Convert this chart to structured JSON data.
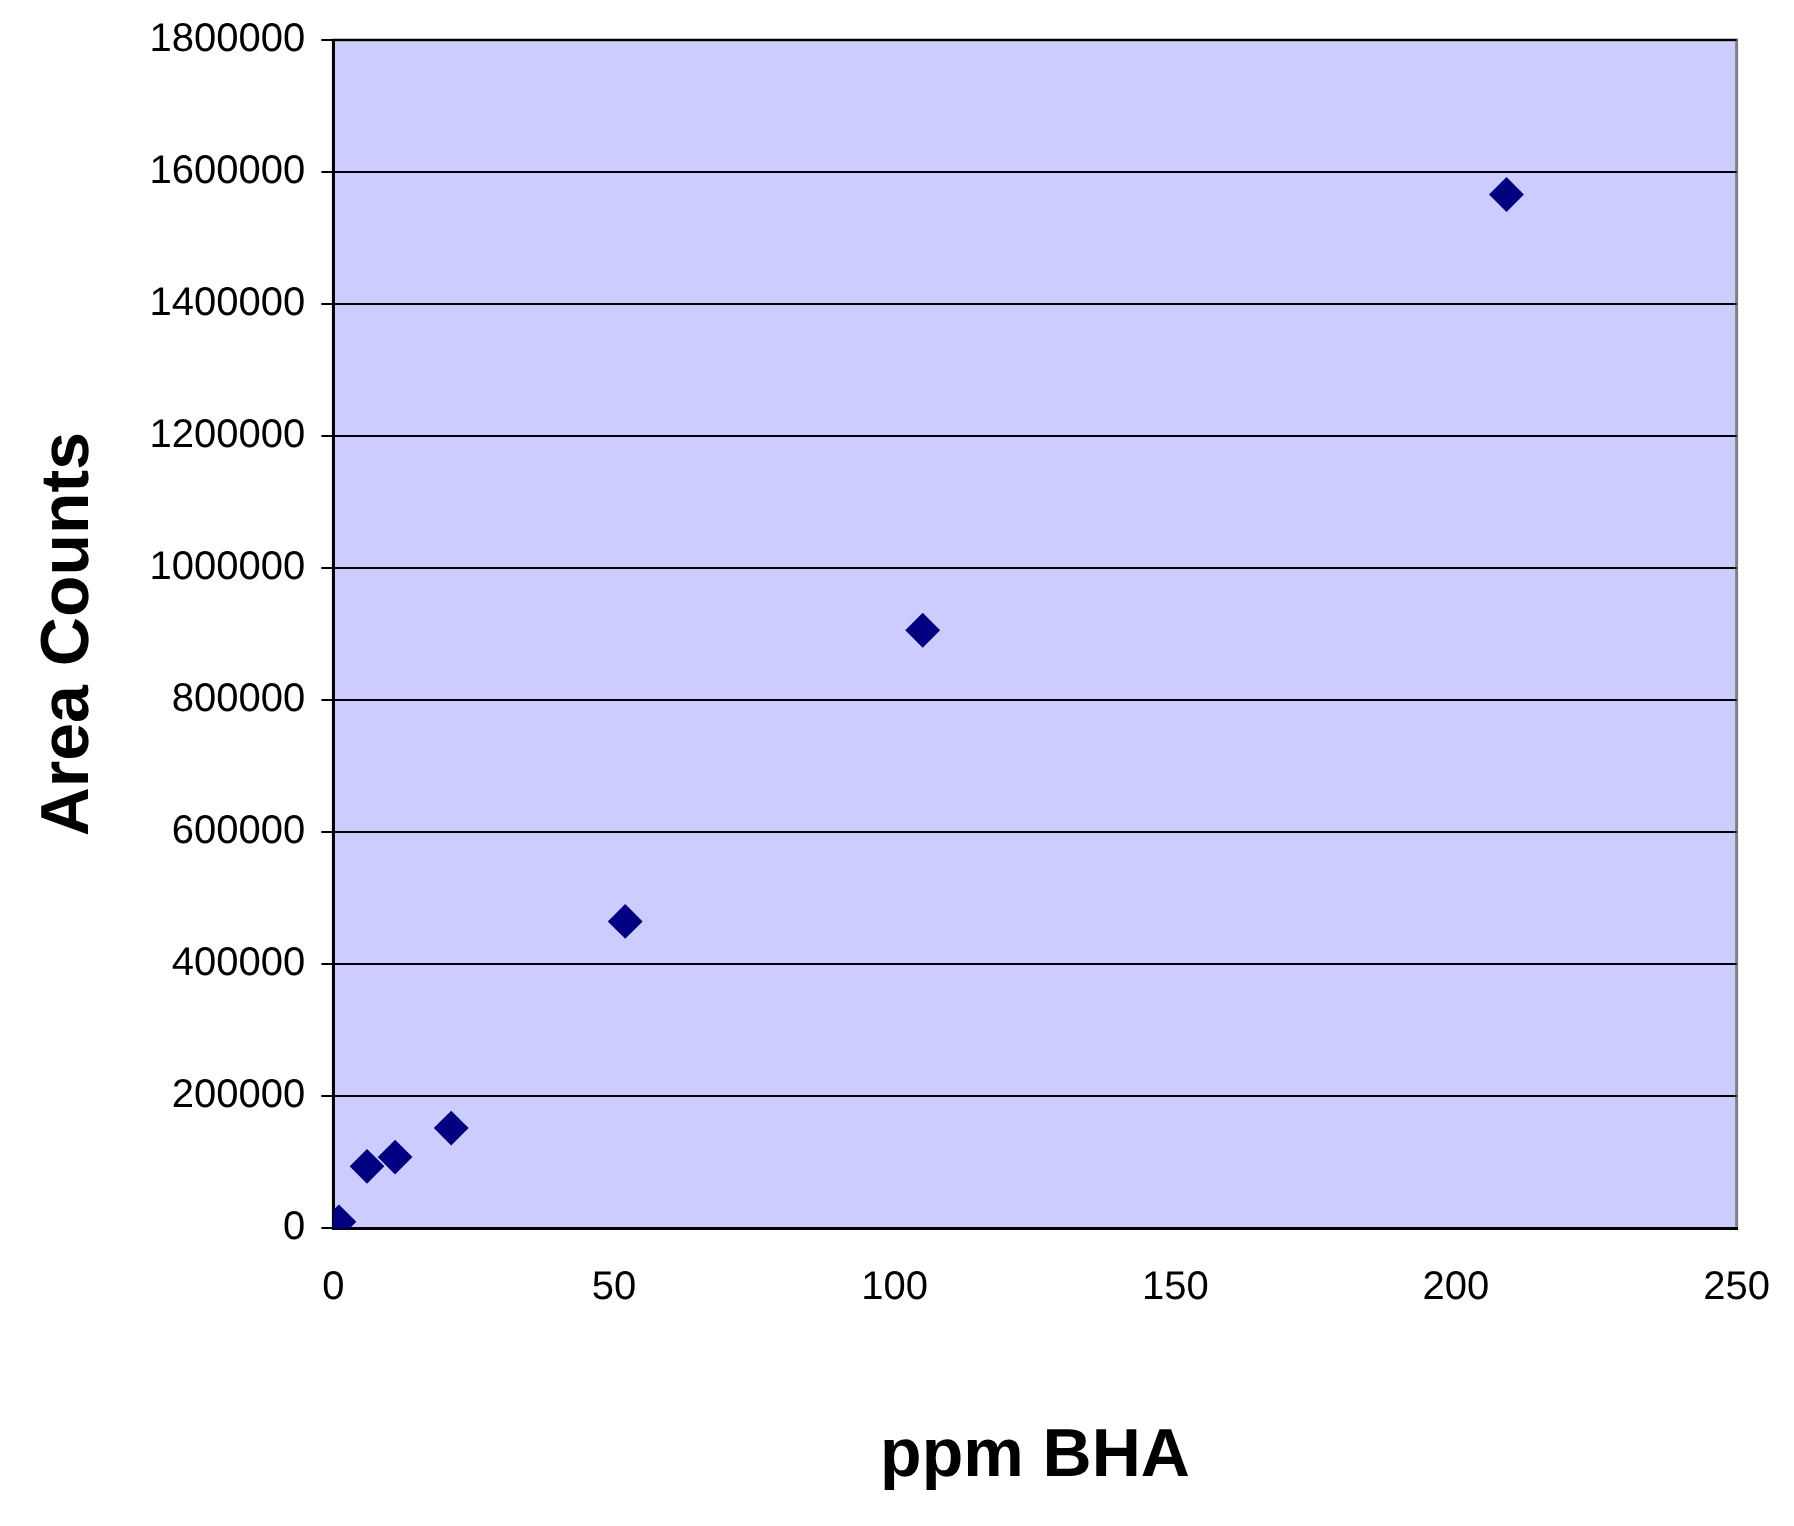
{
  "chart_data": {
    "type": "scatter",
    "xlabel": "ppm BHA",
    "ylabel": "Area Counts",
    "x": [
      1,
      6,
      11,
      21,
      52,
      105,
      209
    ],
    "series": [
      {
        "color": "#000080",
        "values": [
          10000,
          94000,
          108000,
          152000,
          465000,
          906000,
          1566000
        ]
      }
    ],
    "xlim": [
      0,
      250
    ],
    "xticks": [
      0,
      50,
      100,
      150,
      200,
      250
    ],
    "ylim": [
      0,
      1800000
    ],
    "yticks": [
      0,
      200000,
      400000,
      600000,
      800000,
      1000000,
      1200000,
      1400000,
      1600000,
      1800000
    ],
    "grid": "y",
    "legend": false,
    "marker": "diamond"
  }
}
